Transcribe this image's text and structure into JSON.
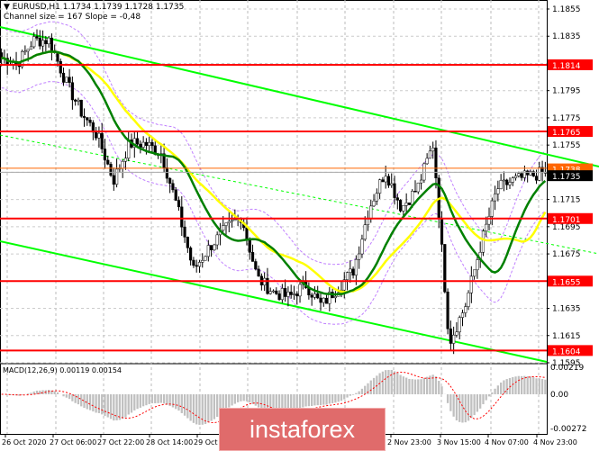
{
  "header": {
    "symbol_line": "EURUSD,H1  1.1734 1.1739 1.1728 1.1735",
    "indicator_line": "Channel size = 167 Slope = -0,48"
  },
  "chart_data": {
    "type": "candlestick",
    "symbol": "EURUSD",
    "timeframe": "H1",
    "ohlc_last": {
      "open": 1.1734,
      "high": 1.1739,
      "low": 1.1728,
      "close": 1.1735
    },
    "price_axis_ticks": [
      "1.1855",
      "1.1835",
      "1.1795",
      "1.1775",
      "1.1755",
      "1.1715",
      "1.1695",
      "1.1675",
      "1.1635",
      "1.1615",
      "1.1595"
    ],
    "ylim": [
      1.159,
      1.1862
    ],
    "time_axis_labels": [
      "26 Oct 2020",
      "27 Oct 06:00",
      "27 Oct 22:00",
      "28 Oct 14:00",
      "29 Oct 06:00",
      "2 Nov 23:00",
      "3 Nov 15:00",
      "4 Nov 07:00",
      "4 Nov 23:00"
    ],
    "approx_close_path": [
      1.1819,
      1.1815,
      1.1832,
      1.1832,
      1.1802,
      1.1779,
      1.1762,
      1.1729,
      1.1756,
      1.1756,
      1.1749,
      1.1709,
      1.1663,
      1.168,
      1.1693,
      1.1703,
      1.1657,
      1.1647,
      1.1643,
      1.1653,
      1.1637,
      1.165,
      1.1663,
      1.1709,
      1.1736,
      1.1709,
      1.1723,
      1.1756,
      1.161,
      1.1637,
      1.1683,
      1.1723,
      1.1729,
      1.1732,
      1.1735
    ],
    "levels": [
      {
        "label": "1.1814",
        "price": 1.1814,
        "color": "#ff0000"
      },
      {
        "label": "1.1765",
        "price": 1.1765,
        "color": "#ff0000"
      },
      {
        "label": "1.1701",
        "price": 1.1701,
        "color": "#ff0000"
      },
      {
        "label": "1.1655",
        "price": 1.1655,
        "color": "#ff0000"
      },
      {
        "label": "1.1604",
        "price": 1.1604,
        "color": "#ff0000"
      }
    ],
    "ask_line": {
      "label": "1.1738",
      "price": 1.1738,
      "color": "#ff6600"
    },
    "bid_label": {
      "label": "1.1735",
      "price": 1.1735,
      "color": "#000000"
    },
    "moving_averages": [
      {
        "color": "#008000"
      },
      {
        "color": "#ffff00"
      }
    ],
    "channel_color": "#00ff00",
    "bands_color": "#c080ff",
    "macd": {
      "label": "MACD(12,26,9) 0.00119 0.00154",
      "ticks": [
        "0.00219",
        "0.00",
        "-0.00272"
      ],
      "ylim": [
        -0.00272,
        0.00219
      ],
      "histogram_color": "#c0c0c0",
      "signal_color": "#ff0000"
    },
    "grid": true
  },
  "watermark": "instaforex"
}
